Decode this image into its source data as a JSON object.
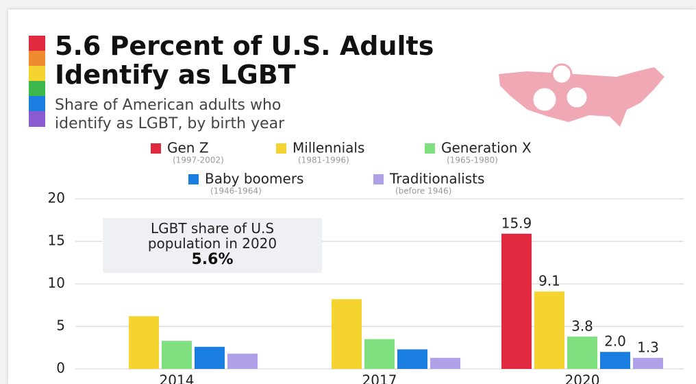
{
  "chart_data": {
    "type": "bar",
    "title": "5.6 Percent of U.S. Adults\nIdentify as LGBT",
    "subtitle": "Share of American adults who\nidentify as LGBT, by birth year",
    "categories": [
      "2014",
      "2017",
      "2020"
    ],
    "series": [
      {
        "name": "Gen Z",
        "years": "(1997-2002)",
        "color": "#e0283e",
        "values": [
          null,
          null,
          15.9
        ],
        "value_labels": [
          null,
          null,
          "15.9"
        ]
      },
      {
        "name": "Millennials",
        "years": "(1981-1996)",
        "color": "#f5d330",
        "values": [
          6.2,
          8.2,
          9.1
        ],
        "value_labels": [
          null,
          null,
          "9.1"
        ]
      },
      {
        "name": "Generation X",
        "years": "(1965-1980)",
        "color": "#7ee07e",
        "values": [
          3.3,
          3.5,
          3.8
        ],
        "value_labels": [
          null,
          null,
          "3.8"
        ]
      },
      {
        "name": "Baby boomers",
        "years": "(1946-1964)",
        "color": "#1a7ee0",
        "values": [
          2.6,
          2.3,
          2.0
        ],
        "value_labels": [
          null,
          null,
          "2.0"
        ]
      },
      {
        "name": "Traditionalists",
        "years": "(before 1946)",
        "color": "#b0a0e8",
        "values": [
          1.8,
          1.3,
          1.3
        ],
        "value_labels": [
          null,
          null,
          "1.3"
        ]
      }
    ],
    "annotation": {
      "text": "LGBT share of U.S\npopulation in 2020",
      "value": "5.6%"
    },
    "ylim": [
      0,
      20
    ],
    "yticks": [
      0,
      5,
      10,
      15,
      20
    ],
    "grid": true
  }
}
